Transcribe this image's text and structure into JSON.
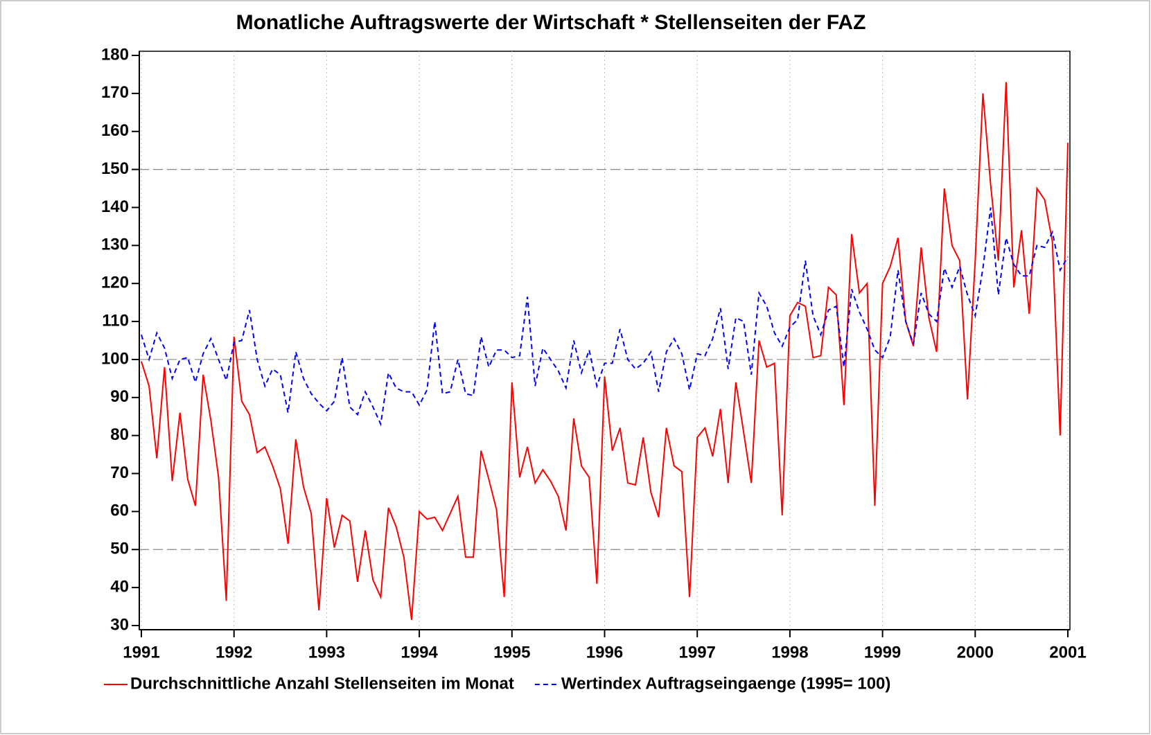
{
  "chart_data": {
    "type": "line",
    "title": "Monatliche Auftragswerte der Wirtschaft * Stellenseiten der FAZ",
    "x": [
      1991,
      1991.0833,
      1991.1667,
      1991.25,
      1991.3333,
      1991.4167,
      1991.5,
      1991.5833,
      1991.6667,
      1991.75,
      1991.8333,
      1991.9167,
      1992,
      1992.0833,
      1992.1667,
      1992.25,
      1992.3333,
      1992.4167,
      1992.5,
      1992.5833,
      1992.6667,
      1992.75,
      1992.8333,
      1992.9167,
      1993,
      1993.0833,
      1993.1667,
      1993.25,
      1993.3333,
      1993.4167,
      1993.5,
      1993.5833,
      1993.6667,
      1993.75,
      1993.8333,
      1993.9167,
      1994,
      1994.0833,
      1994.1667,
      1994.25,
      1994.3333,
      1994.4167,
      1994.5,
      1994.5833,
      1994.6667,
      1994.75,
      1994.8333,
      1994.9167,
      1995,
      1995.0833,
      1995.1667,
      1995.25,
      1995.3333,
      1995.4167,
      1995.5,
      1995.5833,
      1995.6667,
      1995.75,
      1995.8333,
      1995.9167,
      1996,
      1996.0833,
      1996.1667,
      1996.25,
      1996.3333,
      1996.4167,
      1996.5,
      1996.5833,
      1996.6667,
      1996.75,
      1996.8333,
      1996.9167,
      1997,
      1997.0833,
      1997.1667,
      1997.25,
      1997.3333,
      1997.4167,
      1997.5,
      1997.5833,
      1997.6667,
      1997.75,
      1997.8333,
      1997.9167,
      1998,
      1998.0833,
      1998.1667,
      1998.25,
      1998.3333,
      1998.4167,
      1998.5,
      1998.5833,
      1998.6667,
      1998.75,
      1998.8333,
      1998.9167,
      1999,
      1999.0833,
      1999.1667,
      1999.25,
      1999.3333,
      1999.4167,
      1999.5,
      1999.5833,
      1999.6667,
      1999.75,
      1999.8333,
      1999.9167,
      2000,
      2000.0833,
      2000.1667,
      2000.25,
      2000.3333,
      2000.4167,
      2000.5,
      2000.5833,
      2000.6667,
      2000.75,
      2000.8333,
      2000.9167,
      2001
    ],
    "series": [
      {
        "name": "Durchschnittliche Anzahl Stellenseiten im Monat",
        "color": "#ff0000",
        "dash": "solid",
        "values": [
          99.5,
          93,
          74,
          98,
          68,
          86,
          68.5,
          61.5,
          96,
          84,
          69,
          36.5,
          106,
          89,
          85.5,
          75.5,
          77,
          72,
          66,
          51.5,
          79,
          66.5,
          59.5,
          34,
          63.5,
          50.5,
          59,
          57.5,
          41.5,
          55,
          42,
          37.5,
          61,
          56,
          48,
          31.5,
          60,
          58,
          58.5,
          55,
          59.5,
          64,
          48,
          48,
          76,
          68.5,
          60.5,
          37.5,
          94,
          69,
          77,
          67.5,
          71,
          68,
          64,
          55,
          84.5,
          72,
          69,
          41,
          95.5,
          76,
          82,
          67.5,
          67,
          79.5,
          65,
          58.5,
          82,
          72,
          70.5,
          37.5,
          79.5,
          82,
          74.5,
          87,
          67.5,
          94,
          81,
          67.5,
          105,
          98,
          99,
          59,
          111.5,
          115,
          114,
          100.5,
          101,
          119,
          117,
          88,
          133,
          117.5,
          120,
          61.5,
          120,
          124.5,
          132,
          110,
          103.5,
          129.5,
          111,
          102,
          145,
          130,
          126,
          89.5,
          126,
          170,
          146,
          126,
          173,
          119,
          134,
          112,
          145,
          142,
          131,
          80,
          157
        ]
      },
      {
        "name": "Wertindex Auftragseingaenge (1995= 100)",
        "color": "#0000ff",
        "dash": "dashed",
        "values": [
          106.5,
          100,
          107,
          103,
          95,
          100,
          100.5,
          94,
          101.5,
          105.5,
          100,
          94.5,
          104.5,
          105,
          113,
          100,
          93,
          97.5,
          96,
          86,
          102,
          95,
          91,
          88.5,
          86.5,
          89,
          100.5,
          87.5,
          85.5,
          91.5,
          87.5,
          83,
          96.5,
          92.5,
          91.5,
          91.5,
          88,
          92,
          110,
          91,
          91.5,
          100,
          91,
          90.5,
          106,
          98,
          102.5,
          102.5,
          100.5,
          101,
          116.5,
          93,
          103,
          100,
          97,
          92.5,
          105,
          96.5,
          102.5,
          93,
          99,
          99,
          108,
          100,
          97.5,
          99,
          102,
          91.5,
          102,
          105.5,
          101.5,
          92,
          101.5,
          101,
          105.5,
          113.5,
          97.5,
          111,
          110,
          96,
          117.5,
          114,
          107,
          103.5,
          108.5,
          110.5,
          126,
          111.5,
          106.5,
          113,
          114,
          98,
          118.5,
          112.5,
          108,
          102.5,
          100.5,
          106,
          123.5,
          110,
          104,
          117.5,
          112,
          110,
          124,
          119,
          124.5,
          117,
          111.5,
          124,
          140,
          117,
          132,
          125,
          122,
          122,
          130,
          129.5,
          133.5,
          123.5,
          127
        ]
      }
    ],
    "xlim": [
      1991,
      2001
    ],
    "xticks": [
      1991,
      1992,
      1993,
      1994,
      1995,
      1996,
      1997,
      1998,
      1999,
      2000,
      2001
    ],
    "ylim": [
      30,
      180
    ],
    "yticks": [
      30,
      40,
      50,
      60,
      70,
      80,
      90,
      100,
      110,
      120,
      130,
      140,
      150,
      160,
      170,
      180
    ],
    "x_grid": true,
    "y_grid_lines": [
      50,
      100,
      150
    ],
    "legend": "bottom"
  }
}
